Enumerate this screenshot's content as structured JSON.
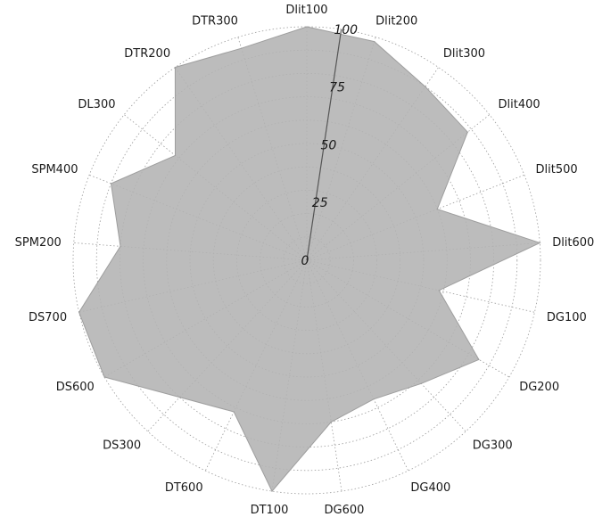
{
  "chart_data": {
    "type": "radar",
    "categories": [
      "Dlit100",
      "Dlit200",
      "Dlit300",
      "Dlit400",
      "Dlit500",
      "Dlit600",
      "DG100",
      "DG200",
      "DG300",
      "DG400",
      "DG600",
      "DT100",
      "DT600",
      "DS300",
      "DS600",
      "DS700",
      "SPM200",
      "SPM400",
      "DL300",
      "DTR200",
      "DTR300"
    ],
    "series": [
      {
        "values": [
          100,
          98,
          90,
          88,
          60,
          100,
          58,
          85,
          72,
          66,
          70,
          100,
          72,
          80,
          100,
          100,
          80,
          90,
          72,
          100,
          95
        ]
      }
    ],
    "rlim": [
      0,
      100
    ],
    "radial_ticks": [
      "0",
      "25",
      "50",
      "75",
      "100"
    ],
    "colors": {
      "fill": "#b3b3b3",
      "grid": "#9a9a9a",
      "axis": "#555555"
    }
  }
}
